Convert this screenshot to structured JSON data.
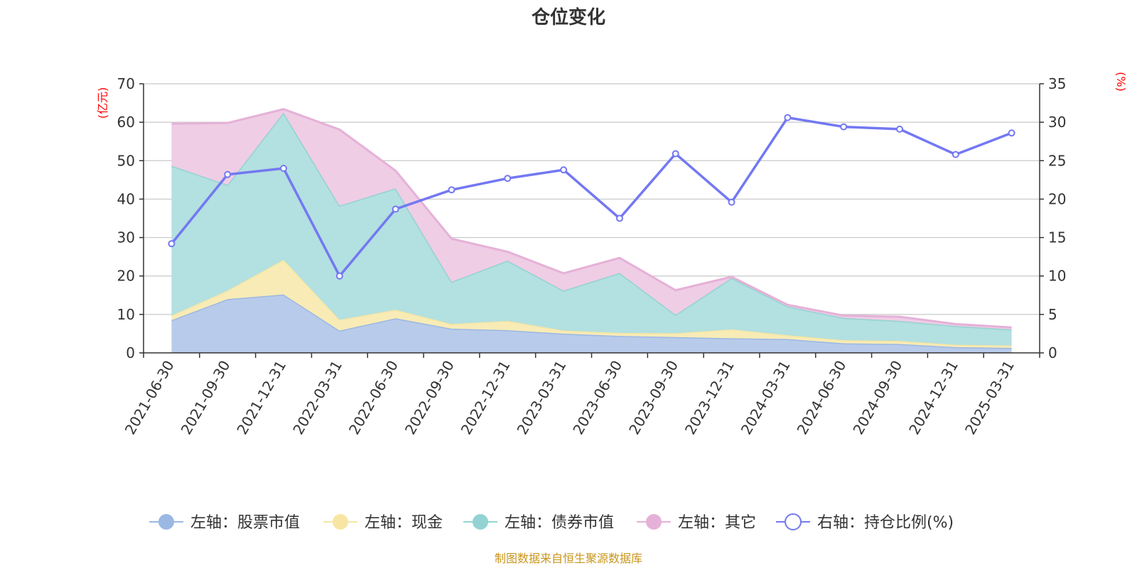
{
  "chart_data": {
    "type": "area",
    "title": "仓位变化",
    "left_unit": "(亿元)",
    "right_unit": "(%)",
    "ylim_left": [
      0,
      70
    ],
    "yticks_left": [
      0,
      10,
      20,
      30,
      40,
      50,
      60,
      70
    ],
    "ylim_right": [
      0,
      35
    ],
    "yticks_right": [
      0,
      5,
      10,
      15,
      20,
      25,
      30,
      35
    ],
    "grid": true,
    "legend_position": "bottom",
    "categories": [
      "2021-06-30",
      "2021-09-30",
      "2021-12-31",
      "2022-03-31",
      "2022-06-30",
      "2022-09-30",
      "2022-12-31",
      "2023-03-31",
      "2023-06-30",
      "2023-09-30",
      "2023-12-31",
      "2024-03-31",
      "2024-06-30",
      "2024-09-30",
      "2024-12-31",
      "2025-03-31"
    ],
    "series": [
      {
        "name": "左轴：股票市值",
        "axis": "left",
        "kind": "stacked-area",
        "color": "#9bb8e3",
        "fill": "#b8cbea",
        "values": [
          8.5,
          14.0,
          15.2,
          5.8,
          9.0,
          6.3,
          5.9,
          5.0,
          4.4,
          4.1,
          3.8,
          3.6,
          2.5,
          2.3,
          1.5,
          1.3
        ]
      },
      {
        "name": "左轴：现金",
        "axis": "left",
        "kind": "stacked-area",
        "color": "#f7e6a3",
        "fill": "#f8ebb6",
        "values": [
          1.2,
          2.2,
          9.0,
          2.8,
          2.2,
          1.2,
          2.4,
          0.8,
          0.8,
          1.0,
          2.3,
          1.0,
          0.8,
          0.8,
          0.6,
          0.6
        ]
      },
      {
        "name": "左轴：债券市值",
        "axis": "left",
        "kind": "stacked-area",
        "color": "#93d3d3",
        "fill": "#b3e0e0",
        "values": [
          39.0,
          27.5,
          38.3,
          29.7,
          31.6,
          11.0,
          15.7,
          10.4,
          15.6,
          4.8,
          13.4,
          7.5,
          5.8,
          5.2,
          4.9,
          4.2
        ]
      },
      {
        "name": "左轴：其它",
        "axis": "left",
        "kind": "stacked-area",
        "color": "#e5b1d8",
        "fill": "#efcde5",
        "values": [
          10.9,
          16.1,
          0.9,
          19.8,
          4.6,
          11.2,
          2.3,
          4.5,
          3.9,
          6.4,
          0.3,
          0.4,
          0.6,
          1.1,
          0.5,
          0.5
        ]
      },
      {
        "name": "右轴：持仓比例(%)",
        "axis": "right",
        "kind": "line",
        "color": "#7378f2",
        "values": [
          14.2,
          23.2,
          24.0,
          10.0,
          18.7,
          21.2,
          22.7,
          23.8,
          17.5,
          25.9,
          19.6,
          30.6,
          29.4,
          29.1,
          25.8,
          28.6
        ]
      }
    ]
  },
  "footer": {
    "source": "制图数据来自恒生聚源数据库"
  }
}
